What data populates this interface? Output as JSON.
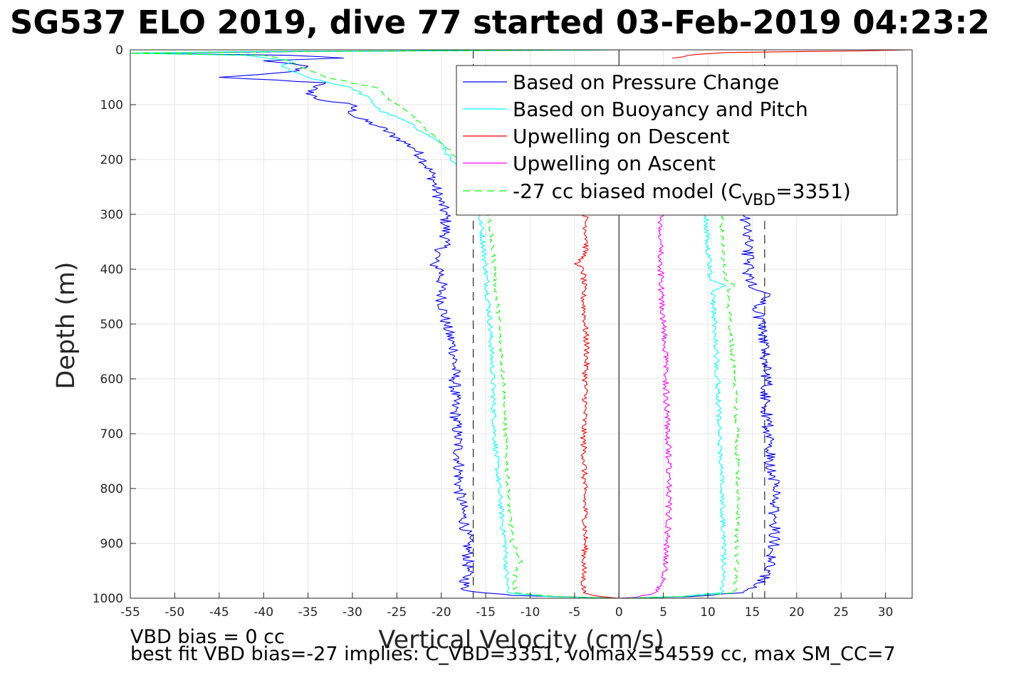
{
  "chart_data": {
    "type": "line",
    "title": "SG537 ELO 2019, dive 77 started 03-Feb-2019 04:23:2",
    "xlabel": "Vertical Velocity (cm/s)",
    "ylabel": "Depth (m)",
    "xlim": [
      -55,
      33
    ],
    "ylim": [
      0,
      1000
    ],
    "y_reversed": true,
    "grid": true,
    "x_ticks": [
      -55,
      -50,
      -45,
      -40,
      -35,
      -30,
      -25,
      -20,
      -15,
      -10,
      -5,
      0,
      5,
      10,
      15,
      20,
      25,
      30
    ],
    "y_ticks": [
      0,
      100,
      200,
      300,
      400,
      500,
      600,
      700,
      800,
      900,
      1000
    ],
    "legend_position": "top-right",
    "legend": [
      {
        "label": "Based on Pressure Change",
        "color": "#0000ff",
        "dash": "solid"
      },
      {
        "label": "Based on Buoyancy and Pitch",
        "color": "#00ffff",
        "dash": "solid"
      },
      {
        "label": "Upwelling on Descent",
        "color": "#ff0000",
        "dash": "solid"
      },
      {
        "label": "Upwelling on Ascent",
        "color": "#ff00ff",
        "dash": "solid"
      },
      {
        "label_main": "-27 cc biased model (C",
        "label_sub": "VBD",
        "label_end": "=3351)",
        "color": "#00ff00",
        "dash": "dashed"
      }
    ],
    "reference_lines": [
      {
        "x": 0,
        "style": "solid",
        "color": "#000000"
      },
      {
        "x": -16.4,
        "style": "dashed",
        "color": "#000000"
      },
      {
        "x": 16.4,
        "style": "dashed",
        "color": "#000000"
      }
    ],
    "series": [
      {
        "name": "Based on Pressure Change",
        "color": "#0000ff",
        "dash": "solid",
        "noise": 0.7,
        "descent": [
          [
            0,
            0
          ],
          [
            3,
            -35
          ],
          [
            6,
            -55
          ],
          [
            10,
            -37
          ],
          [
            15,
            -31
          ],
          [
            20,
            -40
          ],
          [
            30,
            -35
          ],
          [
            40,
            -37
          ],
          [
            50,
            -45
          ],
          [
            60,
            -33
          ],
          [
            75,
            -35
          ],
          [
            90,
            -34
          ],
          [
            100,
            -30
          ],
          [
            120,
            -30
          ],
          [
            140,
            -27
          ],
          [
            160,
            -25
          ],
          [
            180,
            -23
          ],
          [
            200,
            -22
          ],
          [
            230,
            -21
          ],
          [
            260,
            -20.5
          ],
          [
            300,
            -19.5
          ],
          [
            350,
            -19.5
          ],
          [
            390,
            -21
          ],
          [
            400,
            -20
          ],
          [
            450,
            -20
          ],
          [
            500,
            -19.5
          ],
          [
            550,
            -18.5
          ],
          [
            600,
            -18.5
          ],
          [
            650,
            -18.5
          ],
          [
            700,
            -18.2
          ],
          [
            750,
            -18
          ],
          [
            800,
            -18
          ],
          [
            850,
            -17.5
          ],
          [
            900,
            -17
          ],
          [
            950,
            -17
          ],
          [
            985,
            -17.5
          ],
          [
            995,
            -12
          ],
          [
            1000,
            0
          ]
        ],
        "ascent": [
          [
            1000,
            0
          ],
          [
            997,
            8
          ],
          [
            990,
            14
          ],
          [
            980,
            15.5
          ],
          [
            950,
            17
          ],
          [
            900,
            17.5
          ],
          [
            850,
            17.5
          ],
          [
            800,
            17.5
          ],
          [
            750,
            17
          ],
          [
            700,
            16.8
          ],
          [
            650,
            16.6
          ],
          [
            600,
            16.6
          ],
          [
            550,
            16.5
          ],
          [
            500,
            16
          ],
          [
            470,
            15.5
          ],
          [
            445,
            17
          ],
          [
            435,
            15
          ],
          [
            400,
            14.5
          ],
          [
            350,
            14.5
          ],
          [
            300,
            14
          ]
        ]
      },
      {
        "name": "Based on Buoyancy and Pitch",
        "color": "#00ffff",
        "dash": "solid",
        "noise": 0.3,
        "descent": [
          [
            0,
            0
          ],
          [
            3,
            -40
          ],
          [
            6,
            -55
          ],
          [
            10,
            -42
          ],
          [
            20,
            -37
          ],
          [
            30,
            -38
          ],
          [
            50,
            -35
          ],
          [
            70,
            -30
          ],
          [
            90,
            -28
          ],
          [
            110,
            -27
          ],
          [
            130,
            -24
          ],
          [
            150,
            -22
          ],
          [
            170,
            -20
          ],
          [
            200,
            -19
          ],
          [
            240,
            -17
          ],
          [
            280,
            -16
          ],
          [
            320,
            -15.5
          ],
          [
            400,
            -15
          ],
          [
            500,
            -14.5
          ],
          [
            600,
            -14.2
          ],
          [
            700,
            -14
          ],
          [
            800,
            -13.5
          ],
          [
            880,
            -13
          ],
          [
            900,
            -12.8
          ],
          [
            950,
            -12.7
          ],
          [
            990,
            -12.5
          ],
          [
            997,
            -8
          ],
          [
            1000,
            0
          ]
        ],
        "ascent": [
          [
            1000,
            0
          ],
          [
            997,
            7
          ],
          [
            990,
            11.5
          ],
          [
            950,
            11.8
          ],
          [
            900,
            11.8
          ],
          [
            800,
            11.6
          ],
          [
            700,
            11.3
          ],
          [
            600,
            11.1
          ],
          [
            500,
            10.8
          ],
          [
            440,
            10.5
          ],
          [
            430,
            12
          ],
          [
            420,
            10.3
          ],
          [
            400,
            10.2
          ],
          [
            350,
            10
          ],
          [
            300,
            9.8
          ]
        ]
      },
      {
        "name": "Upwelling on Descent",
        "color": "#ff0000",
        "dash": "solid",
        "noise": 0.35,
        "descent": [
          [
            300,
            -3.8
          ],
          [
            350,
            -3.6
          ],
          [
            380,
            -4
          ],
          [
            390,
            -5
          ],
          [
            400,
            -4
          ],
          [
            450,
            -4
          ],
          [
            500,
            -3.8
          ],
          [
            550,
            -3.6
          ],
          [
            600,
            -3.8
          ],
          [
            650,
            -3.8
          ],
          [
            700,
            -4
          ],
          [
            750,
            -3.9
          ],
          [
            800,
            -3.9
          ],
          [
            850,
            -3.8
          ],
          [
            900,
            -3.8
          ],
          [
            950,
            -4
          ],
          [
            990,
            -4
          ],
          [
            997,
            -2
          ],
          [
            1000,
            0
          ]
        ],
        "ascent": [
          [
            0,
            32.5
          ],
          [
            2,
            27
          ],
          [
            3,
            21
          ],
          [
            5,
            12
          ],
          [
            8,
            9
          ],
          [
            15,
            6
          ]
        ]
      },
      {
        "name": "Upwelling on Ascent",
        "color": "#ff00ff",
        "dash": "solid",
        "noise": 0.35,
        "descent": [],
        "ascent": [
          [
            1000,
            0
          ],
          [
            998,
            2
          ],
          [
            990,
            4
          ],
          [
            970,
            5
          ],
          [
            950,
            5.2
          ],
          [
            900,
            5.4
          ],
          [
            850,
            5.6
          ],
          [
            800,
            5.6
          ],
          [
            750,
            5.6
          ],
          [
            700,
            5.5
          ],
          [
            650,
            5.4
          ],
          [
            600,
            5.3
          ],
          [
            550,
            5.2
          ],
          [
            500,
            5
          ],
          [
            450,
            4.8
          ],
          [
            400,
            4.7
          ],
          [
            350,
            4.7
          ],
          [
            300,
            4.8
          ]
        ]
      },
      {
        "name": "-27 cc biased model",
        "color": "#00ff00",
        "dash": "dashed",
        "noise": 0.25,
        "descent": [
          [
            0,
            0
          ],
          [
            3,
            -35
          ],
          [
            6,
            -55
          ],
          [
            10,
            -40
          ],
          [
            20,
            -37
          ],
          [
            30,
            -36
          ],
          [
            50,
            -33
          ],
          [
            70,
            -27
          ],
          [
            90,
            -26
          ],
          [
            110,
            -24
          ],
          [
            140,
            -22
          ],
          [
            170,
            -20
          ],
          [
            200,
            -18
          ],
          [
            240,
            -16
          ],
          [
            280,
            -15
          ],
          [
            320,
            -14.5
          ],
          [
            400,
            -14
          ],
          [
            500,
            -13.5
          ],
          [
            600,
            -13
          ],
          [
            700,
            -12.8
          ],
          [
            800,
            -12.5
          ],
          [
            900,
            -12
          ],
          [
            930,
            -11
          ],
          [
            950,
            -11.7
          ],
          [
            990,
            -11.7
          ],
          [
            997,
            -7
          ],
          [
            1000,
            0
          ]
        ],
        "ascent": [
          [
            1000,
            0
          ],
          [
            997,
            7
          ],
          [
            990,
            13
          ],
          [
            950,
            13.2
          ],
          [
            900,
            13.3
          ],
          [
            800,
            13.4
          ],
          [
            700,
            13.3
          ],
          [
            600,
            13
          ],
          [
            500,
            12.5
          ],
          [
            440,
            12.2
          ],
          [
            430,
            13
          ],
          [
            420,
            12
          ],
          [
            400,
            11.8
          ],
          [
            350,
            11.6
          ],
          [
            300,
            11.5
          ]
        ]
      }
    ]
  },
  "footnotes": {
    "line1": "VBD bias = 0 cc",
    "line2": "best fit VBD bias=-27 implies: C_VBD=3351, volmax=54559 cc, max SM_CC=7"
  }
}
